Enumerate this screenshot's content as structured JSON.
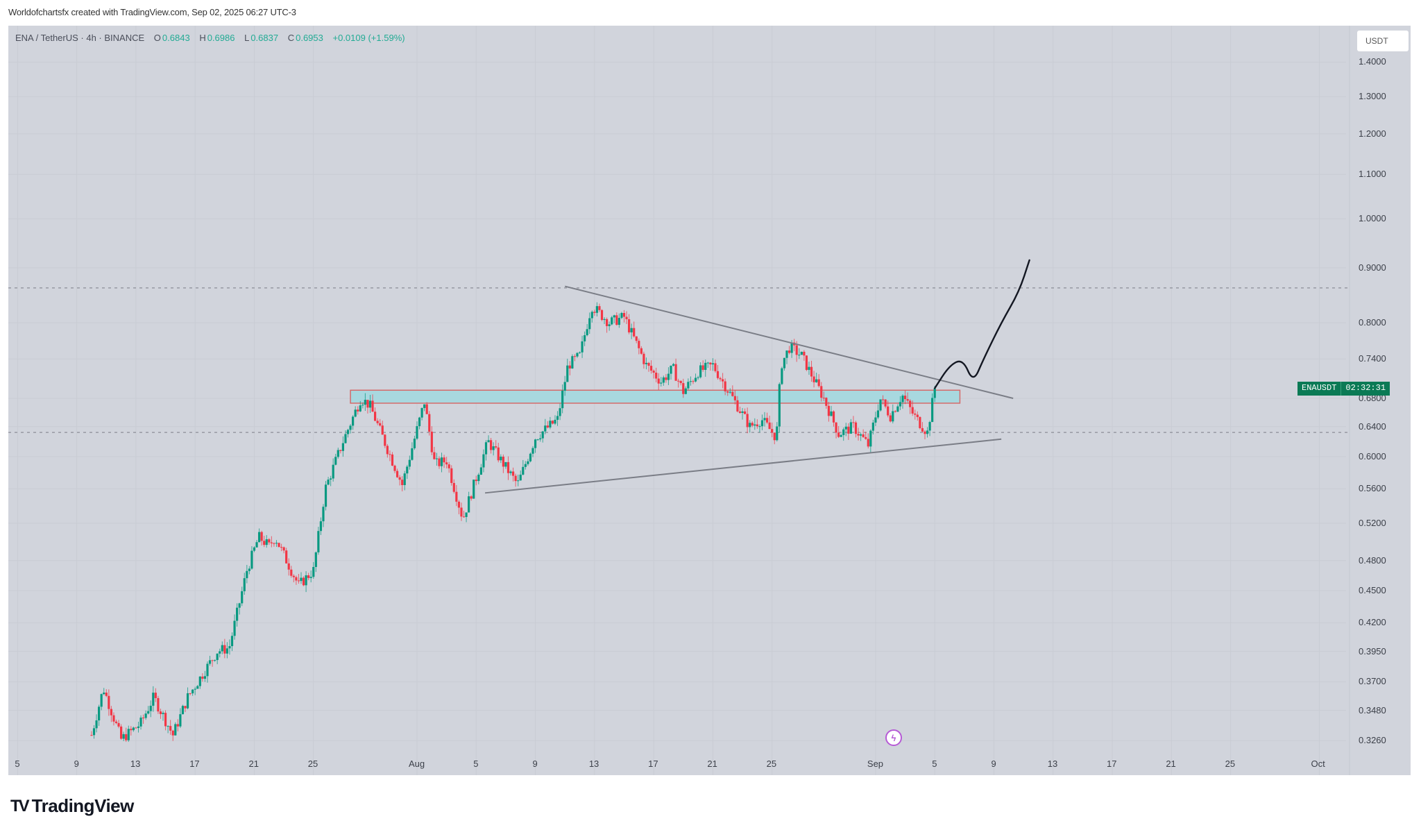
{
  "caption": "Worldofchartsfx created with TradingView.com, Sep 02, 2025 06:27 UTC-3",
  "legend": {
    "symbol": "ENA / TetherUS · 4h · BINANCE",
    "open_label": "O",
    "open": "0.6843",
    "high_label": "H",
    "high": "0.6986",
    "low_label": "L",
    "low": "0.6837",
    "close_label": "C",
    "close": "0.6953",
    "change": "+0.0109 (+1.59%)"
  },
  "price_axis": {
    "unit": "USDT",
    "labels": [
      "1.4000",
      "1.3000",
      "1.2000",
      "1.1000",
      "1.0000",
      "0.9000",
      "0.8000",
      "0.7400",
      "0.6800",
      "0.6400",
      "0.6000",
      "0.5600",
      "0.5200",
      "0.4800",
      "0.4500",
      "0.4200",
      "0.3950",
      "0.3700",
      "0.3480",
      "0.3260"
    ]
  },
  "time_axis": {
    "labels": [
      "5",
      "9",
      "13",
      "17",
      "21",
      "25",
      "Aug",
      "5",
      "9",
      "13",
      "17",
      "21",
      "25",
      "Sep",
      "5",
      "9",
      "13",
      "17",
      "21",
      "25",
      "Oct"
    ]
  },
  "price_tag": {
    "symbol": "ENAUSDT",
    "countdown": "02:32:31"
  },
  "event_icon": "lightning-icon",
  "logo": {
    "mark": "TV",
    "text": "TradingView"
  },
  "colors": {
    "up": "#089981",
    "down": "#f23645",
    "zone_fill": "#a8d8df",
    "zone_border": "#d46a6a",
    "trendline": "#7a7d86",
    "projection": "#131722",
    "background": "#d1d4dc",
    "tag": "#0b7a55",
    "event": "#b65ad6"
  },
  "chart_data": {
    "type": "candlestick",
    "title": "ENA / TetherUS · 4h · BINANCE",
    "xlabel": "",
    "ylabel": "USDT",
    "scale": "log",
    "ylim": [
      0.32,
      1.42
    ],
    "grid": true,
    "x_range": [
      "Jul 5, 2025",
      "Oct 5, 2025"
    ],
    "swing_points": [
      {
        "date": "Jul 10",
        "day": 10.0,
        "price": 0.33
      },
      {
        "date": "Jul 11",
        "day": 10.8,
        "price": 0.365
      },
      {
        "date": "Jul 12",
        "day": 12.0,
        "price": 0.327
      },
      {
        "date": "Jul 13",
        "day": 13.3,
        "price": 0.338
      },
      {
        "date": "Jul 14",
        "day": 14.2,
        "price": 0.358
      },
      {
        "date": "Jul 15",
        "day": 15.5,
        "price": 0.33
      },
      {
        "date": "Jul 16",
        "day": 16.5,
        "price": 0.358
      },
      {
        "date": "Jul 18",
        "day": 18.5,
        "price": 0.395
      },
      {
        "date": "Jul 19",
        "day": 19.3,
        "price": 0.398
      },
      {
        "date": "Jul 20",
        "day": 20.5,
        "price": 0.47
      },
      {
        "date": "Jul 21",
        "day": 21.3,
        "price": 0.505
      },
      {
        "date": "Jul 22",
        "day": 22.0,
        "price": 0.495
      },
      {
        "date": "Jul 22",
        "day": 22.4,
        "price": 0.505
      },
      {
        "date": "Jul 24",
        "day": 24.0,
        "price": 0.455
      },
      {
        "date": "Jul 25",
        "day": 25.0,
        "price": 0.47
      },
      {
        "date": "Jul 26",
        "day": 25.8,
        "price": 0.56
      },
      {
        "date": "Jul 27",
        "day": 27.0,
        "price": 0.62
      },
      {
        "date": "Jul 28",
        "day": 28.2,
        "price": 0.68
      },
      {
        "date": "Jul 29",
        "day": 28.8,
        "price": 0.67
      },
      {
        "date": "Jul 30",
        "day": 30.0,
        "price": 0.61
      },
      {
        "date": "Jul 31",
        "day": 31.0,
        "price": 0.565
      },
      {
        "date": "Aug 1",
        "day": 32.5,
        "price": 0.675
      },
      {
        "date": "Aug 2",
        "day": 33.2,
        "price": 0.59
      },
      {
        "date": "Aug 3",
        "day": 34.0,
        "price": 0.595
      },
      {
        "date": "Aug 4",
        "day": 35.1,
        "price": 0.525
      },
      {
        "date": "Aug 5",
        "day": 36.8,
        "price": 0.62
      },
      {
        "date": "Aug 7",
        "day": 38.8,
        "price": 0.565
      },
      {
        "date": "Aug 8",
        "day": 40.0,
        "price": 0.625
      },
      {
        "date": "Aug 9",
        "day": 41.5,
        "price": 0.65
      },
      {
        "date": "Aug 10",
        "day": 42.2,
        "price": 0.73
      },
      {
        "date": "Aug 11",
        "day": 43.0,
        "price": 0.745
      },
      {
        "date": "Aug 12",
        "day": 43.8,
        "price": 0.83
      },
      {
        "date": "Aug 13",
        "day": 45.0,
        "price": 0.8
      },
      {
        "date": "Aug 14",
        "day": 46.0,
        "price": 0.81
      },
      {
        "date": "Aug 15",
        "day": 47.5,
        "price": 0.73
      },
      {
        "date": "Aug 16",
        "day": 48.5,
        "price": 0.705
      },
      {
        "date": "Aug 17",
        "day": 49.3,
        "price": 0.725
      },
      {
        "date": "Aug 18",
        "day": 50.0,
        "price": 0.69
      },
      {
        "date": "Aug 19",
        "day": 51.0,
        "price": 0.72
      },
      {
        "date": "Aug 20",
        "day": 52.0,
        "price": 0.73
      },
      {
        "date": "Aug 21",
        "day": 53.5,
        "price": 0.675
      },
      {
        "date": "Aug 22",
        "day": 54.5,
        "price": 0.64
      },
      {
        "date": "Aug 23",
        "day": 55.3,
        "price": 0.65
      },
      {
        "date": "Aug 24",
        "day": 56.3,
        "price": 0.625
      },
      {
        "date": "Aug 24",
        "day": 56.6,
        "price": 0.73
      },
      {
        "date": "Aug 25",
        "day": 57.2,
        "price": 0.76
      },
      {
        "date": "Aug 26",
        "day": 58.0,
        "price": 0.745
      },
      {
        "date": "Aug 27",
        "day": 59.5,
        "price": 0.68
      },
      {
        "date": "Aug 28",
        "day": 60.5,
        "price": 0.63
      },
      {
        "date": "Aug 29",
        "day": 61.5,
        "price": 0.64
      },
      {
        "date": "Aug 30",
        "day": 62.5,
        "price": 0.615
      },
      {
        "date": "Aug 31",
        "day": 63.3,
        "price": 0.68
      },
      {
        "date": "Sep 1",
        "day": 64.0,
        "price": 0.655
      },
      {
        "date": "Sep 1",
        "day": 64.8,
        "price": 0.685
      },
      {
        "date": "Sep 2",
        "day": 65.6,
        "price": 0.655
      },
      {
        "date": "Sep 2",
        "day": 66.5,
        "price": 0.632
      },
      {
        "date": "Sep 2",
        "day": 67.0,
        "price": 0.695
      }
    ],
    "drawings": {
      "resistance_zone": {
        "from_day": 27.5,
        "to_day": 68.7,
        "price_top": 0.692,
        "price_bottom": 0.673
      },
      "descending_trendline": {
        "start": {
          "day": 42.0,
          "price": 0.865
        },
        "end": {
          "day": 72.3,
          "price": 0.68
        }
      },
      "ascending_trendline": {
        "start": {
          "day": 36.6,
          "price": 0.555
        },
        "end": {
          "day": 71.5,
          "price": 0.623
        }
      },
      "horizontal_dashed": [
        0.862,
        0.632
      ],
      "projection_path": [
        {
          "day": 67.0,
          "price": 0.695
        },
        {
          "day": 68.0,
          "price": 0.73
        },
        {
          "day": 68.9,
          "price": 0.74
        },
        {
          "day": 69.6,
          "price": 0.703
        },
        {
          "day": 70.3,
          "price": 0.74
        },
        {
          "day": 71.5,
          "price": 0.8
        },
        {
          "day": 72.7,
          "price": 0.855
        },
        {
          "day": 73.4,
          "price": 0.915
        }
      ]
    }
  }
}
